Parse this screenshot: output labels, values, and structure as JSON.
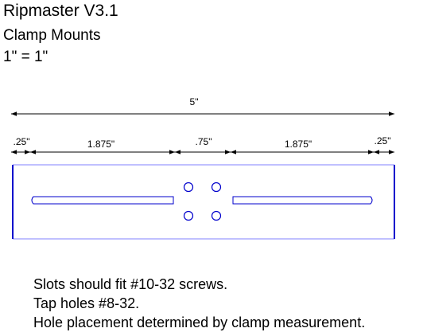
{
  "header": {
    "title": "Ripmaster V3.1",
    "subtitle": "Clamp Mounts",
    "scale": "1\" = 1\""
  },
  "dimensions": {
    "overall": "5\"",
    "left_margin": ".25\"",
    "left_slot": "1.875\"",
    "center_gap": ".75\"",
    "right_slot": "1.875\"",
    "right_margin": ".25\""
  },
  "notes": [
    "Slots should fit #10-32 screws.",
    "Tap holes #8-32.",
    "Hole placement determined by clamp measurement."
  ],
  "colors": {
    "outline": "#0000cc",
    "plate_edge": "#8080ff",
    "dimension": "#000000"
  }
}
